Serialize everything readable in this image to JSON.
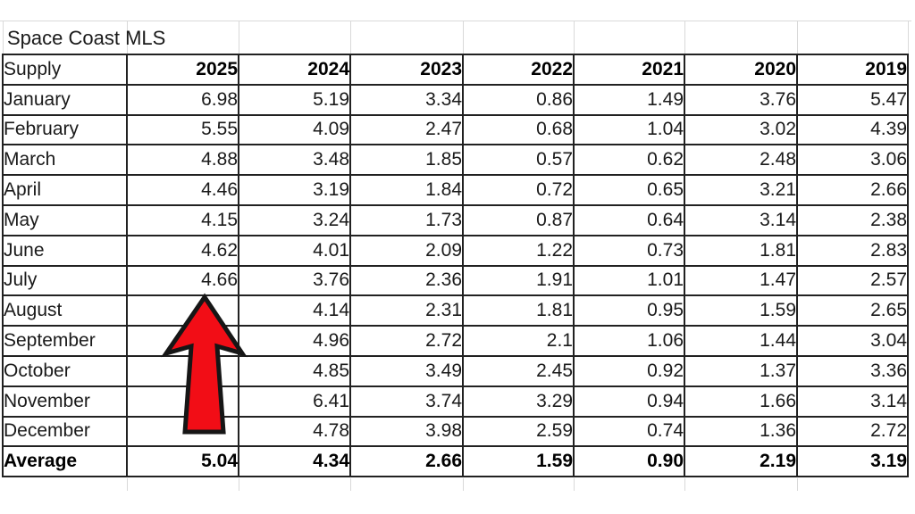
{
  "title": "Space Coast MLS",
  "table": {
    "header": [
      "Supply",
      "2025",
      "2024",
      "2023",
      "2022",
      "2021",
      "2020",
      "2019"
    ],
    "rows": [
      {
        "label": "January",
        "values": [
          "6.98",
          "5.19",
          "3.34",
          "0.86",
          "1.49",
          "3.76",
          "5.47"
        ]
      },
      {
        "label": "February",
        "values": [
          "5.55",
          "4.09",
          "2.47",
          "0.68",
          "1.04",
          "3.02",
          "4.39"
        ]
      },
      {
        "label": "March",
        "values": [
          "4.88",
          "3.48",
          "1.85",
          "0.57",
          "0.62",
          "2.48",
          "3.06"
        ]
      },
      {
        "label": "April",
        "values": [
          "4.46",
          "3.19",
          "1.84",
          "0.72",
          "0.65",
          "3.21",
          "2.66"
        ]
      },
      {
        "label": "May",
        "values": [
          "4.15",
          "3.24",
          "1.73",
          "0.87",
          "0.64",
          "3.14",
          "2.38"
        ]
      },
      {
        "label": "June",
        "values": [
          "4.62",
          "4.01",
          "2.09",
          "1.22",
          "0.73",
          "1.81",
          "2.83"
        ]
      },
      {
        "label": "July",
        "values": [
          "4.66",
          "3.76",
          "2.36",
          "1.91",
          "1.01",
          "1.47",
          "2.57"
        ]
      },
      {
        "label": "August",
        "values": [
          "",
          "4.14",
          "2.31",
          "1.81",
          "0.95",
          "1.59",
          "2.65"
        ]
      },
      {
        "label": "September",
        "values": [
          "",
          "4.96",
          "2.72",
          "2.1",
          "1.06",
          "1.44",
          "3.04"
        ]
      },
      {
        "label": "October",
        "values": [
          "",
          "4.85",
          "3.49",
          "2.45",
          "0.92",
          "1.37",
          "3.36"
        ]
      },
      {
        "label": "November",
        "values": [
          "",
          "6.41",
          "3.74",
          "3.29",
          "0.94",
          "1.66",
          "3.14"
        ]
      },
      {
        "label": "December",
        "values": [
          "",
          "4.78",
          "3.98",
          "2.59",
          "0.74",
          "1.36",
          "2.72"
        ]
      }
    ],
    "average": {
      "label": "Average",
      "values": [
        "5.04",
        "4.34",
        "2.66",
        "1.59",
        "0.90",
        "2.19",
        "3.19"
      ]
    }
  },
  "annotation": {
    "arrow": {
      "meaning": "red up-arrow pointing at July 2025 value 4.66",
      "fill": "#f20d16",
      "outline": "#161616"
    }
  },
  "colors": {
    "background": "#ffffff",
    "grid_dark": "#212121",
    "grid_faint": "#d9d9d9",
    "text": "#1a1a1a"
  }
}
